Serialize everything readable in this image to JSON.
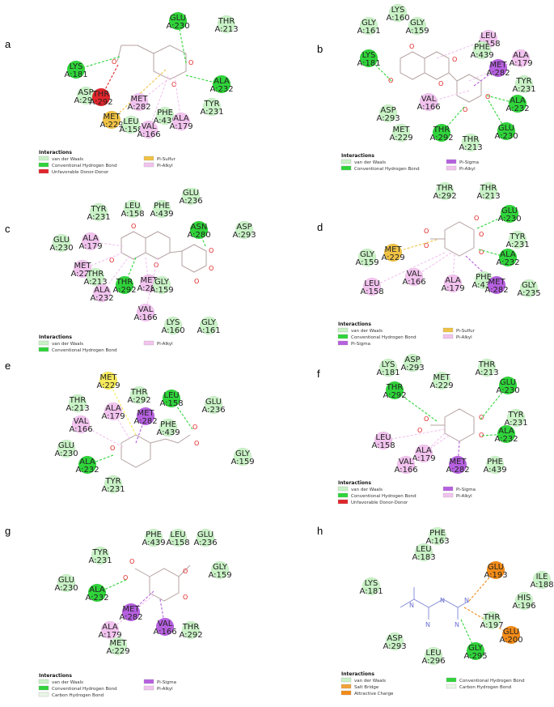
{
  "colors": {
    "vdw": "#c9f2c6",
    "hbond": "#2fd43a",
    "pisulfur": "#f0c244",
    "pialkyl": "#f2c3ef",
    "pisigma": "#b660e0",
    "unfavorable": "#e0252b",
    "salt": "#f2a23a",
    "attractive": "#f28b18",
    "chbond": "#eaf7e8",
    "yellow": "#f6ea5a"
  },
  "panels": [
    {
      "label": "a",
      "legend_title": "Interactions",
      "legend": [
        {
          "text": "van der Waals",
          "color": "vdw"
        },
        {
          "text": "Pi-Sulfur",
          "color": "pisulfur"
        },
        {
          "text": "Conventional Hydrogen Bond",
          "color": "hbond"
        },
        {
          "text": "Pi-Alkyl",
          "color": "pialkyl"
        },
        {
          "text": "Unfavorable Donor-Donor",
          "color": "unfavorable"
        }
      ],
      "residues": [
        {
          "name": "GLU",
          "num": "A:230",
          "color": "hbond"
        },
        {
          "name": "THR",
          "num": "A:213",
          "color": "vdw"
        },
        {
          "name": "LYS",
          "num": "A:181",
          "color": "hbond"
        },
        {
          "name": "ASP",
          "num": "A:293",
          "color": "vdw"
        },
        {
          "name": "THR",
          "num": "A:292",
          "color": "unfavorable"
        },
        {
          "name": "ALA",
          "num": "A:232",
          "color": "hbond"
        },
        {
          "name": "MET",
          "num": "A:282",
          "color": "pialkyl"
        },
        {
          "name": "TYR",
          "num": "A:231",
          "color": "vdw"
        },
        {
          "name": "MET",
          "num": "A:229",
          "color": "pisulfur"
        },
        {
          "name": "LEU",
          "num": "A:158",
          "color": "vdw"
        },
        {
          "name": "VAL",
          "num": "A:166",
          "color": "pialkyl"
        },
        {
          "name": "PHE",
          "num": "A:439",
          "color": "vdw"
        },
        {
          "name": "ALA",
          "num": "A:179",
          "color": "pialkyl"
        }
      ]
    },
    {
      "label": "b",
      "legend_title": "Interactions",
      "legend": [
        {
          "text": "van der Waals",
          "color": "vdw"
        },
        {
          "text": "Pi-Sigma",
          "color": "pisigma"
        },
        {
          "text": "Conventional Hydrogen Bond",
          "color": "hbond"
        },
        {
          "text": "Pi-Alkyl",
          "color": "pialkyl"
        }
      ],
      "residues": [
        {
          "name": "LYS",
          "num": "A:160",
          "color": "vdw"
        },
        {
          "name": "GLY",
          "num": "A:161",
          "color": "vdw"
        },
        {
          "name": "GLY",
          "num": "A:159",
          "color": "vdw"
        },
        {
          "name": "LEU",
          "num": "A:158",
          "color": "pialkyl"
        },
        {
          "name": "PHE",
          "num": "A:439",
          "color": "vdw"
        },
        {
          "name": "LYS",
          "num": "A:181",
          "color": "hbond"
        },
        {
          "name": "ALA",
          "num": "A:179",
          "color": "pialkyl"
        },
        {
          "name": "MET",
          "num": "A:282",
          "color": "pisigma"
        },
        {
          "name": "TYR",
          "num": "A:231",
          "color": "vdw"
        },
        {
          "name": "VAL",
          "num": "A:166",
          "color": "pialkyl"
        },
        {
          "name": "ALA",
          "num": "A:232",
          "color": "hbond"
        },
        {
          "name": "ASP",
          "num": "A:293",
          "color": "vdw"
        },
        {
          "name": "MET",
          "num": "A:229",
          "color": "vdw"
        },
        {
          "name": "THR",
          "num": "A:292",
          "color": "hbond"
        },
        {
          "name": "THR",
          "num": "A:213",
          "color": "vdw"
        },
        {
          "name": "GLU",
          "num": "A:230",
          "color": "hbond"
        }
      ]
    },
    {
      "label": "c",
      "legend_title": "Interactions",
      "legend": [
        {
          "text": "van der Waals",
          "color": "vdw"
        },
        {
          "text": "Pi-Alkyl",
          "color": "pialkyl"
        },
        {
          "text": "Conventional Hydrogen Bond",
          "color": "hbond"
        }
      ],
      "residues": [
        {
          "name": "GLU",
          "num": "A:236",
          "color": "vdw"
        },
        {
          "name": "TYR",
          "num": "A:231",
          "color": "vdw"
        },
        {
          "name": "LEU",
          "num": "A:158",
          "color": "vdw"
        },
        {
          "name": "PHE",
          "num": "A:439",
          "color": "vdw"
        },
        {
          "name": "ASN",
          "num": "A:280",
          "color": "hbond"
        },
        {
          "name": "ASP",
          "num": "A:293",
          "color": "vdw"
        },
        {
          "name": "GLU",
          "num": "A:230",
          "color": "vdw"
        },
        {
          "name": "ALA",
          "num": "A:179",
          "color": "pialkyl"
        },
        {
          "name": "MET",
          "num": "A:229",
          "color": "pialkyl"
        },
        {
          "name": "THR",
          "num": "A:213",
          "color": "vdw"
        },
        {
          "name": "THR",
          "num": "A:292",
          "color": "hbond"
        },
        {
          "name": "MET",
          "num": "A:282",
          "color": "pialkyl"
        },
        {
          "name": "GLY",
          "num": "A:159",
          "color": "vdw"
        },
        {
          "name": "ALA",
          "num": "A:232",
          "color": "pialkyl"
        },
        {
          "name": "VAL",
          "num": "A:166",
          "color": "pialkyl"
        },
        {
          "name": "LYS",
          "num": "A:160",
          "color": "vdw"
        },
        {
          "name": "GLY",
          "num": "A:161",
          "color": "vdw"
        }
      ]
    },
    {
      "label": "d",
      "legend_title": "Interactions",
      "legend": [
        {
          "text": "van der Waals",
          "color": "vdw"
        },
        {
          "text": "Pi-Sulfur",
          "color": "pisulfur"
        },
        {
          "text": "Conventional Hydrogen Bond",
          "color": "hbond"
        },
        {
          "text": "Pi-Alkyl",
          "color": "pialkyl"
        },
        {
          "text": "Pi-Sigma",
          "color": "pisigma"
        }
      ],
      "residues": [
        {
          "name": "THR",
          "num": "A:292",
          "color": "vdw"
        },
        {
          "name": "THR",
          "num": "A:213",
          "color": "vdw"
        },
        {
          "name": "GLU",
          "num": "A:230",
          "color": "hbond"
        },
        {
          "name": "TYR",
          "num": "A:231",
          "color": "vdw"
        },
        {
          "name": "MET",
          "num": "A:229",
          "color": "pisulfur"
        },
        {
          "name": "GLY",
          "num": "A:159",
          "color": "vdw"
        },
        {
          "name": "ALA",
          "num": "A:232",
          "color": "hbond"
        },
        {
          "name": "VAL",
          "num": "A:166",
          "color": "pialkyl"
        },
        {
          "name": "PHE",
          "num": "A:439",
          "color": "vdw"
        },
        {
          "name": "LEU",
          "num": "A:158",
          "color": "pialkyl"
        },
        {
          "name": "ALA",
          "num": "A:179",
          "color": "pialkyl"
        },
        {
          "name": "MET",
          "num": "A:282",
          "color": "pisigma"
        },
        {
          "name": "GLY",
          "num": "A:235",
          "color": "vdw"
        }
      ]
    },
    {
      "label": "e",
      "legend_title": "",
      "legend": [],
      "residues": [
        {
          "name": "MET",
          "num": "A:229",
          "color": "yellow"
        },
        {
          "name": "THR",
          "num": "A:292",
          "color": "vdw"
        },
        {
          "name": "LEU",
          "num": "A:158",
          "color": "hbond"
        },
        {
          "name": "THR",
          "num": "A:213",
          "color": "vdw"
        },
        {
          "name": "ALA",
          "num": "A:179",
          "color": "pialkyl"
        },
        {
          "name": "MET",
          "num": "A:282",
          "color": "pisigma"
        },
        {
          "name": "GLU",
          "num": "A:236",
          "color": "vdw"
        },
        {
          "name": "VAL",
          "num": "A:166",
          "color": "pialkyl"
        },
        {
          "name": "PHE",
          "num": "A:439",
          "color": "vdw"
        },
        {
          "name": "GLU",
          "num": "A:230",
          "color": "vdw"
        },
        {
          "name": "GLY",
          "num": "A:159",
          "color": "vdw"
        },
        {
          "name": "ALA",
          "num": "A:232",
          "color": "hbond"
        },
        {
          "name": "TYR",
          "num": "A:231",
          "color": "vdw"
        }
      ]
    },
    {
      "label": "f",
      "legend_title": "Interactions",
      "legend": [
        {
          "text": "van der Waals",
          "color": "vdw"
        },
        {
          "text": "Pi-Sigma",
          "color": "pisigma"
        },
        {
          "text": "Conventional Hydrogen Bond",
          "color": "hbond"
        },
        {
          "text": "Pi-Alkyl",
          "color": "pialkyl"
        },
        {
          "text": "Unfavorable Donor-Donor",
          "color": "unfavorable"
        }
      ],
      "residues": [
        {
          "name": "LYS",
          "num": "A:181",
          "color": "vdw"
        },
        {
          "name": "ASP",
          "num": "A:293",
          "color": "vdw"
        },
        {
          "name": "THR",
          "num": "A:213",
          "color": "vdw"
        },
        {
          "name": "MET",
          "num": "A:229",
          "color": "vdw"
        },
        {
          "name": "THR",
          "num": "A:292",
          "color": "hbond"
        },
        {
          "name": "GLU",
          "num": "A:230",
          "color": "hbond"
        },
        {
          "name": "TYR",
          "num": "A:231",
          "color": "vdw"
        },
        {
          "name": "ALA",
          "num": "A:232",
          "color": "hbond"
        },
        {
          "name": "LEU",
          "num": "A:158",
          "color": "pialkyl"
        },
        {
          "name": "ALA",
          "num": "A:179",
          "color": "pialkyl"
        },
        {
          "name": "VAL",
          "num": "A:166",
          "color": "pialkyl"
        },
        {
          "name": "MET",
          "num": "A:282",
          "color": "pisigma"
        },
        {
          "name": "PHE",
          "num": "A:439",
          "color": "vdw"
        }
      ]
    },
    {
      "label": "g",
      "legend_title": "Interactions",
      "legend": [
        {
          "text": "van der Waals",
          "color": "vdw"
        },
        {
          "text": "Pi-Sigma",
          "color": "pisigma"
        },
        {
          "text": "Conventional Hydrogen Bond",
          "color": "hbond"
        },
        {
          "text": "Pi-Alkyl",
          "color": "pialkyl"
        },
        {
          "text": "Carbon Hydrogen Bond",
          "color": "chbond"
        }
      ],
      "residues": [
        {
          "name": "PHE",
          "num": "A:439",
          "color": "vdw"
        },
        {
          "name": "LEU",
          "num": "A:158",
          "color": "vdw"
        },
        {
          "name": "GLU",
          "num": "A:236",
          "color": "vdw"
        },
        {
          "name": "TYR",
          "num": "A:231",
          "color": "vdw"
        },
        {
          "name": "GLY",
          "num": "A:159",
          "color": "vdw"
        },
        {
          "name": "GLU",
          "num": "A:230",
          "color": "vdw"
        },
        {
          "name": "ALA",
          "num": "A:232",
          "color": "hbond"
        },
        {
          "name": "MET",
          "num": "A:282",
          "color": "pisigma"
        },
        {
          "name": "ALA",
          "num": "A:179",
          "color": "pialkyl"
        },
        {
          "name": "VAL",
          "num": "A:166",
          "color": "pisigma"
        },
        {
          "name": "THR",
          "num": "A:292",
          "color": "vdw"
        },
        {
          "name": "MET",
          "num": "A:229",
          "color": "vdw"
        }
      ]
    },
    {
      "label": "h",
      "legend_title": "Interactions",
      "legend": [
        {
          "text": "van der Waals",
          "color": "vdw"
        },
        {
          "text": "Conventional Hydrogen Bond",
          "color": "hbond"
        },
        {
          "text": "Salt Bridge",
          "color": "salt"
        },
        {
          "text": "Carbon Hydrogen Bond",
          "color": "chbond"
        },
        {
          "text": "Attractive Charge",
          "color": "attractive"
        }
      ],
      "residues": [
        {
          "name": "PHE",
          "num": "A:163",
          "color": "vdw"
        },
        {
          "name": "LEU",
          "num": "A:183",
          "color": "vdw"
        },
        {
          "name": "GLU",
          "num": "A:193",
          "color": "attractive"
        },
        {
          "name": "LYS",
          "num": "A:181",
          "color": "vdw"
        },
        {
          "name": "ILE",
          "num": "A:188",
          "color": "vdw"
        },
        {
          "name": "HIS",
          "num": "A:196",
          "color": "vdw"
        },
        {
          "name": "THR",
          "num": "A:197",
          "color": "vdw"
        },
        {
          "name": "GLU",
          "num": "A:200",
          "color": "attractive"
        },
        {
          "name": "ASP",
          "num": "A:293",
          "color": "vdw"
        },
        {
          "name": "LEU",
          "num": "A:296",
          "color": "vdw"
        },
        {
          "name": "GLY",
          "num": "A:295",
          "color": "hbond"
        }
      ]
    }
  ]
}
